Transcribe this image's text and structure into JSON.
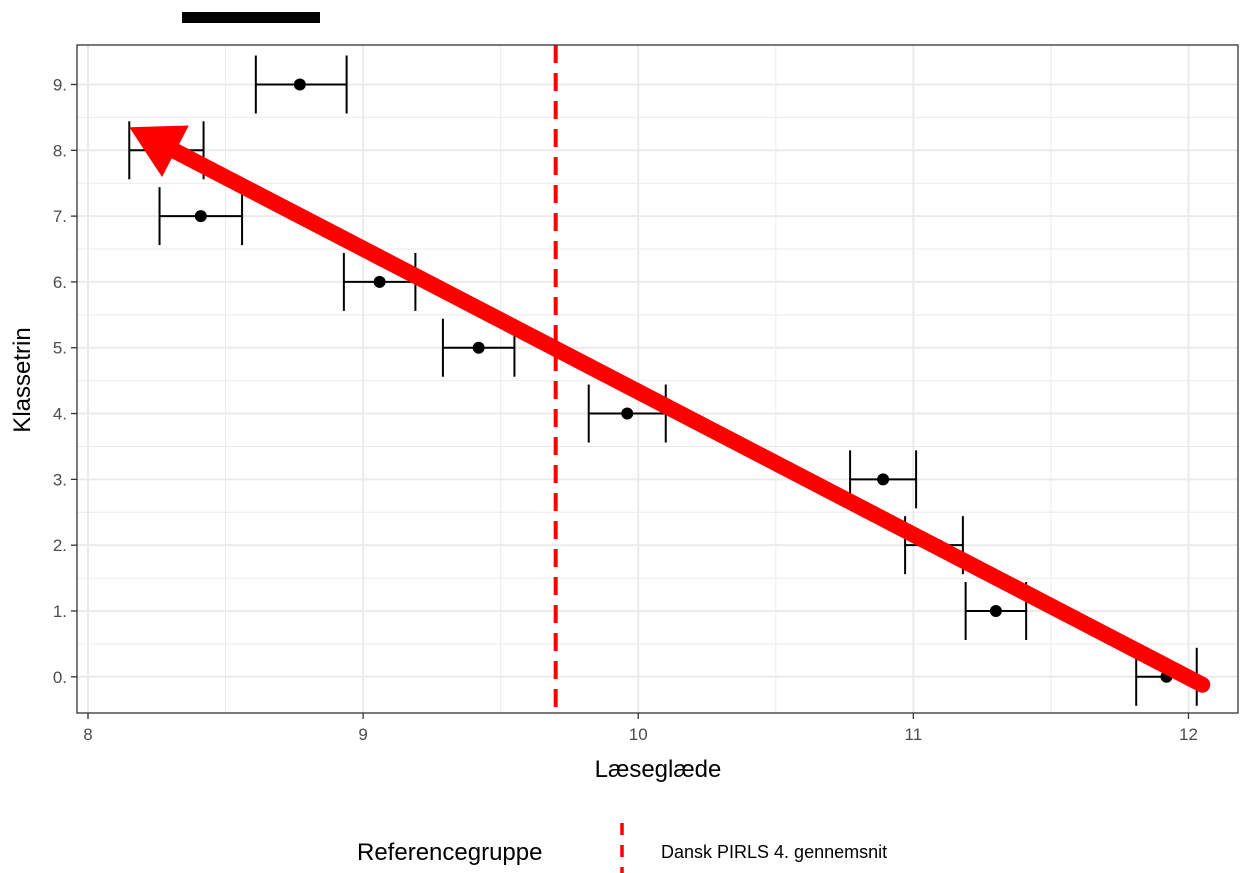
{
  "chart_data": {
    "type": "scatter",
    "title": "",
    "xlabel": "Læseglæde",
    "ylabel": "Klassetrin",
    "xlim": [
      7.96,
      12.18
    ],
    "ylim": [
      -0.55,
      9.6
    ],
    "x_ticks": [
      8,
      9,
      10,
      11,
      12
    ],
    "y_ticks": [
      0,
      1,
      2,
      3,
      4,
      5,
      6,
      7,
      8,
      9
    ],
    "x_tick_labels": [
      "8",
      "9",
      "10",
      "11",
      "12"
    ],
    "y_tick_labels": [
      "0.",
      "1.",
      "2.",
      "3.",
      "4.",
      "5.",
      "6.",
      "7.",
      "8.",
      "9."
    ],
    "grid": true,
    "series": [
      {
        "points": [
          {
            "grade": 0,
            "mean": 11.92,
            "lower": 11.81,
            "upper": 12.03
          },
          {
            "grade": 1,
            "mean": 11.3,
            "lower": 11.19,
            "upper": 11.41
          },
          {
            "grade": 2,
            "mean": 11.09,
            "lower": 10.97,
            "upper": 11.18
          },
          {
            "grade": 3,
            "mean": 10.89,
            "lower": 10.77,
            "upper": 11.01
          },
          {
            "grade": 4,
            "mean": 9.96,
            "lower": 9.82,
            "upper": 10.1
          },
          {
            "grade": 5,
            "mean": 9.42,
            "lower": 9.29,
            "upper": 9.55
          },
          {
            "grade": 6,
            "mean": 9.06,
            "lower": 8.93,
            "upper": 9.19
          },
          {
            "grade": 7,
            "mean": 8.41,
            "lower": 8.26,
            "upper": 8.56
          },
          {
            "grade": 8,
            "mean": 8.27,
            "lower": 8.15,
            "upper": 8.42
          },
          {
            "grade": 9,
            "mean": 8.77,
            "lower": 8.61,
            "upper": 8.94
          }
        ]
      }
    ],
    "reference_line": {
      "x": 9.7,
      "color": "#ff0000",
      "style": "dashed"
    },
    "legend": {
      "title": "Referencegruppe",
      "label": "Dansk PIRLS 4. gennemsnit",
      "placement": "bottom"
    },
    "annotation_arrow": {
      "from": {
        "x": 12.05,
        "y": -0.12
      },
      "to": {
        "x": 8.15,
        "y": 8.35
      },
      "color": "#ff0000"
    }
  },
  "colors": {
    "panel_border": "#333333",
    "grid": "#ebebeb",
    "points": "#000000",
    "reference": "#ff0000",
    "arrow": "#ff0000"
  }
}
